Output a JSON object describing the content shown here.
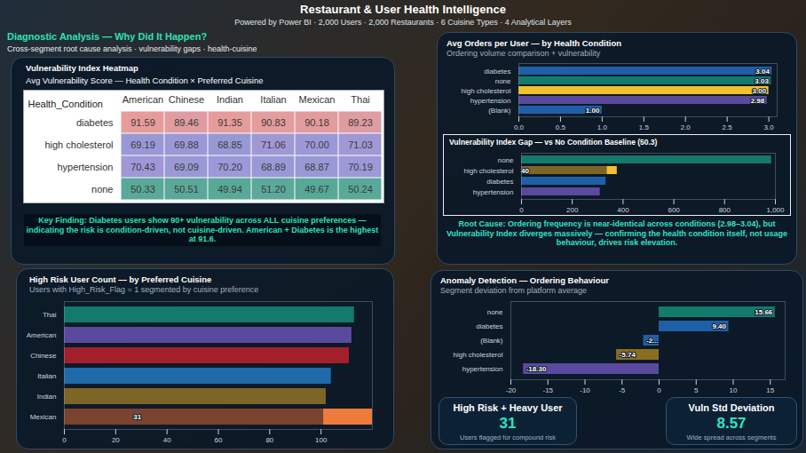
{
  "header": {
    "title": "Restaurant & User Health Intelligence",
    "subtitle": "Powered by Power BI · 2,000 Users · 2,000 Restaurants · 6 Cuisine Types · 4 Analytical Layers"
  },
  "section": {
    "title": "Diagnostic Analysis — Why Did It Happen?",
    "subtitle": "Cross-segment root cause analysis · vulnerability gaps · health-cuisine"
  },
  "chart_data": [
    {
      "type": "heatmap",
      "title": "Vulnerability Index Heatmap",
      "subtitle": "Avg Vulnerability Score — Health Condition × Preferred Cuisine",
      "row_header": "Health_Condition",
      "rows": [
        "diabetes",
        "high cholesterol",
        "hypertension",
        "none"
      ],
      "categories": [
        "American",
        "Chinese",
        "Indian",
        "Italian",
        "Mexican",
        "Thai"
      ],
      "cells": [
        [
          91.59,
          89.46,
          91.35,
          90.83,
          90.18,
          89.23
        ],
        [
          69.19,
          69.88,
          68.85,
          71.06,
          70.0,
          71.03
        ],
        [
          70.43,
          69.09,
          70.2,
          68.89,
          68.87,
          70.19
        ],
        [
          50.33,
          50.51,
          49.94,
          51.2,
          49.67,
          50.24
        ]
      ],
      "value_labels": [
        [
          "91.59",
          "89.46",
          "91.35",
          "90.83",
          "90.18",
          "89.23"
        ],
        [
          "69.19",
          "69.88",
          "68.85",
          "71.06",
          "70.00",
          "71.03"
        ],
        [
          "70.43",
          "69.09",
          "70.20",
          "68.89",
          "68.87",
          "70.19"
        ],
        [
          "50.33",
          "50.51",
          "49.94",
          "51.20",
          "49.67",
          "50.24"
        ]
      ],
      "data_labels": true,
      "annotation": "Key Finding: Diabetes users show 90+ vulnerability across ALL cuisine preferences — indicating the risk is condition-driven, not cuisine-driven. American + Diabetes is the highest at 91.6."
    },
    {
      "type": "bar",
      "orientation": "horizontal",
      "title": "High Risk User Count — by Preferred Cuisine",
      "subtitle": "Users with High_Risk_Flag = 1 segmented by cuisine preference",
      "categories": [
        "Thai",
        "American",
        "Chinese",
        "Italian",
        "Indian",
        "Mexican"
      ],
      "series": [
        {
          "values": [
            113,
            112,
            111,
            104,
            102,
            101
          ],
          "colors": [
            "#137a6c",
            "#5a4a9e",
            "#a31f2c",
            "#1f6aa8",
            "#7d6526",
            "#7a4330"
          ]
        },
        {
          "values": [
            null,
            null,
            null,
            null,
            null,
            31
          ],
          "value_labels": [
            null,
            null,
            null,
            null,
            null,
            "31"
          ],
          "color": "#ee7b3b"
        }
      ],
      "xlim": [
        0,
        120
      ],
      "xticks": [
        0,
        20,
        40,
        60,
        80,
        100
      ],
      "grid": false,
      "data_labels": true
    },
    {
      "type": "bar",
      "orientation": "horizontal",
      "title": "Avg Orders per User — by Health Condition",
      "subtitle": "Ordering volume comparison + vulnerability",
      "categories": [
        "diabetes",
        "none",
        "high cholesterol",
        "hypertension",
        "(Blank)"
      ],
      "series": [
        {
          "values": [
            3.04,
            3.03,
            3.0,
            2.98,
            1.0
          ],
          "value_labels": [
            "3.04",
            "3.03",
            "3.00",
            "2.98",
            "1.00"
          ],
          "colors": [
            "#1f5fa8",
            "#137a6c",
            "#f2c12e",
            "#5a4a9e",
            "#1f5fa8"
          ]
        }
      ],
      "xlim": [
        0,
        3.1
      ],
      "xticks": [
        {
          "value": 0,
          "label": "0.0"
        },
        0.5,
        {
          "value": 1,
          "label": "1.0"
        },
        1.5,
        {
          "value": 2,
          "label": "2.0"
        },
        2.5,
        {
          "value": 3,
          "label": "3.0"
        }
      ],
      "grid": false,
      "data_labels": true
    },
    {
      "type": "bar",
      "orientation": "horizontal",
      "title": "Vulnerability Index Gap — vs No Condition Baseline (50.3)",
      "categories": [
        "none",
        "high cholesterol",
        "diabetes",
        "hypertension"
      ],
      "series": [
        {
          "values": [
            985,
            337,
            333,
            310
          ],
          "colors": [
            "#137a6c",
            "#7d6526",
            "#1f5fa8",
            "#5a4a9e"
          ]
        },
        {
          "values": [
            null,
            40,
            null,
            null
          ],
          "value_labels": [
            null,
            "40",
            null,
            null
          ],
          "color": "#f2c12e"
        }
      ],
      "xlim": [
        0,
        1000
      ],
      "xticks": [
        0,
        200,
        400,
        600,
        800,
        {
          "value": 1000,
          "label": "1,000"
        }
      ],
      "grid": false,
      "data_labels": true,
      "annotation": "Root Cause: Ordering frequency is near-identical across conditions (2.98–3.04), but Vulnerability Index diverges massively — confirming the health condition itself, not usage behaviour, drives risk elevation."
    },
    {
      "type": "bar",
      "orientation": "horizontal",
      "title": "Anomaly Detection — Ordering Behaviour",
      "subtitle": "Segment deviation from platform average",
      "categories": [
        "none",
        "diabetes",
        "(Blank)",
        "high cholesterol",
        "hypertension"
      ],
      "series": [
        {
          "values": [
            15.66,
            9.4,
            -2.1,
            -5.74,
            -18.3
          ],
          "value_labels": [
            "15.66",
            "9.40",
            "-2...",
            "-5.74",
            "-18.30"
          ],
          "colors": [
            "#137a6c",
            "#1f5fa8",
            "#1f5fa8",
            "#8a6d1f",
            "#5a4a9e"
          ]
        }
      ],
      "xlim": [
        -20,
        17
      ],
      "xticks": [
        -20,
        -15,
        -10,
        -5,
        0,
        5,
        10,
        15
      ],
      "grid": false,
      "data_labels": true
    }
  ],
  "cards": [
    {
      "title": "High Risk + Heavy User",
      "value": 31,
      "caption": "Users flagged for compound risk"
    },
    {
      "title": "Vuln Std Deviation",
      "value": 8.57,
      "caption": "Wide spread across segments"
    }
  ]
}
